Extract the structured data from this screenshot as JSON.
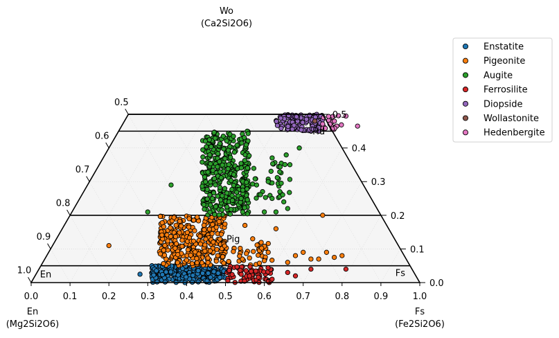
{
  "chart_data": {
    "type": "scatter",
    "subtype": "pyroxene-quadrilateral",
    "apex_labels": {
      "wo": "Wo",
      "wo_formula": "(Ca2Si2O6)",
      "en": "En",
      "en_formula": "(Mg2Si2O6)",
      "fs": "Fs",
      "fs_formula": "(Fe2Si2O6)"
    },
    "bottom_ticks": [
      "0.0",
      "0.1",
      "0.2",
      "0.3",
      "0.4",
      "0.5",
      "0.6",
      "0.7",
      "0.8",
      "0.9",
      "1.0"
    ],
    "left_ticks": [
      "0.5",
      "0.6",
      "0.7",
      "0.8",
      "0.9",
      "1.0"
    ],
    "right_ticks": [
      "0.0",
      "0.1",
      "0.2",
      "0.3",
      "0.4",
      "0.5"
    ],
    "field_boundaries_wo": [
      0.05,
      0.2,
      0.45,
      0.5
    ],
    "field_labels": [
      {
        "text": "En",
        "en": 0.955,
        "fs": 0.03,
        "wo": 0.015
      },
      {
        "text": "Pig",
        "en": 0.42,
        "fs": 0.46,
        "wo": 0.12
      },
      {
        "text": "Hd",
        "en": 0.04,
        "fs": 0.52,
        "wo": 0.44
      },
      {
        "text": "Fs",
        "en": 0.04,
        "fs": 0.94,
        "wo": 0.02
      }
    ],
    "legend": {
      "placement": "right",
      "entries": [
        {
          "name": "Enstatite",
          "color": "#1f77b4"
        },
        {
          "name": "Pigeonite",
          "color": "#ff7f0e"
        },
        {
          "name": "Augite",
          "color": "#2ca02c"
        },
        {
          "name": "Ferrosilite",
          "color": "#d62728"
        },
        {
          "name": "Diopside",
          "color": "#9467bd"
        },
        {
          "name": "Wollastonite",
          "color": "#8c564b"
        },
        {
          "name": "Hedenbergite",
          "color": "#e377c2"
        }
      ]
    },
    "series": [
      {
        "name": "Enstatite",
        "color": "#1f77b4",
        "regions": [
          {
            "wo": [
              0.0,
              0.05
            ],
            "x": [
              0.31,
              0.5
            ],
            "n": 260
          }
        ],
        "points": [
          [
            0.28,
            0.025
          ]
        ]
      },
      {
        "name": "Pigeonite",
        "color": "#ff7f0e",
        "regions": [
          {
            "wo": [
              0.05,
              0.2
            ],
            "x": [
              0.33,
              0.5
            ],
            "n": 320
          },
          {
            "wo": [
              0.05,
              0.12
            ],
            "x": [
              0.49,
              0.62
            ],
            "n": 45
          }
        ],
        "points": [
          [
            0.2,
            0.11
          ],
          [
            0.75,
            0.2
          ],
          [
            0.48,
            0.08
          ],
          [
            0.72,
            0.07
          ],
          [
            0.76,
            0.09
          ],
          [
            0.8,
            0.08
          ],
          [
            0.63,
            0.16
          ],
          [
            0.57,
            0.13
          ],
          [
            0.55,
            0.17
          ],
          [
            0.61,
            0.09
          ],
          [
            0.68,
            0.08
          ],
          [
            0.7,
            0.09
          ],
          [
            0.74,
            0.07
          ],
          [
            0.78,
            0.075
          ],
          [
            0.66,
            0.06
          ],
          [
            0.6,
            0.065
          ]
        ]
      },
      {
        "name": "Augite",
        "color": "#2ca02c",
        "regions": [
          {
            "wo": [
              0.2,
              0.45
            ],
            "x": [
              0.44,
              0.56
            ],
            "n": 380
          },
          {
            "wo": [
              0.25,
              0.38
            ],
            "x": [
              0.54,
              0.67
            ],
            "n": 45
          }
        ],
        "points": [
          [
            0.3,
            0.21
          ],
          [
            0.36,
            0.29
          ],
          [
            0.69,
            0.4
          ],
          [
            0.62,
            0.25
          ],
          [
            0.65,
            0.24
          ],
          [
            0.66,
            0.22
          ],
          [
            0.64,
            0.27
          ],
          [
            0.6,
            0.21
          ],
          [
            0.63,
            0.21
          ],
          [
            0.58,
            0.29
          ],
          [
            0.61,
            0.3
          ]
        ]
      },
      {
        "name": "Ferrosilite",
        "color": "#d62728",
        "regions": [
          {
            "wo": [
              0.0,
              0.05
            ],
            "x": [
              0.5,
              0.62
            ],
            "n": 70
          }
        ],
        "points": [
          [
            0.66,
            0.03
          ],
          [
            0.72,
            0.04
          ],
          [
            0.81,
            0.04
          ],
          [
            0.62,
            0.01
          ],
          [
            0.68,
            0.02
          ]
        ]
      },
      {
        "name": "Diopside",
        "color": "#9467bd",
        "regions": [
          {
            "wo": [
              0.45,
              0.5
            ],
            "x": [
              0.63,
              0.75
            ],
            "n": 130
          }
        ],
        "points": []
      },
      {
        "name": "Wollastonite",
        "color": "#8c564b",
        "regions": [],
        "points": [
          [
            0.73,
            0.48
          ]
        ]
      },
      {
        "name": "Hedenbergite",
        "color": "#e377c2",
        "regions": [
          {
            "wo": [
              0.455,
              0.5
            ],
            "x": [
              0.75,
              0.8
            ],
            "n": 20
          }
        ],
        "points": [
          [
            0.84,
            0.465
          ],
          [
            0.81,
            0.495
          ]
        ]
      }
    ]
  }
}
